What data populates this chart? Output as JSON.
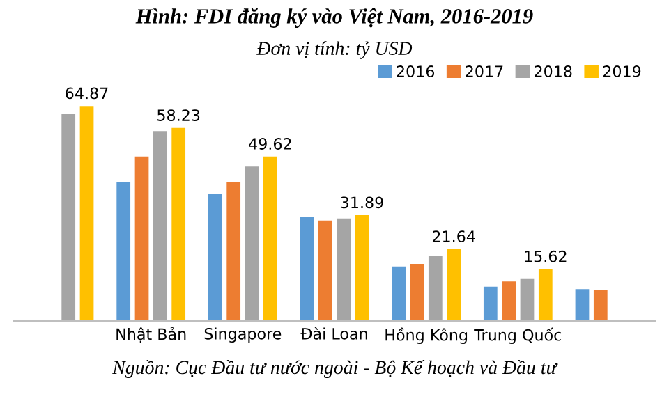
{
  "chart_data": {
    "type": "bar",
    "title": "Hình: FDI đăng ký vào Việt Nam, 2016-2019",
    "subtitle": "Đơn vị tính: tỷ USD",
    "categories": [
      null,
      "Nhật Bản",
      "Singapore",
      "Đài Loan",
      "Hồng Kông",
      "Trung Quốc",
      null
    ],
    "series": [
      {
        "name": "2016",
        "color": "#5b9bd5",
        "values": [
          null,
          42.0,
          38.2,
          31.3,
          16.4,
          10.3,
          9.6
        ]
      },
      {
        "name": "2017",
        "color": "#ed7d31",
        "values": [
          null,
          49.6,
          42.0,
          30.3,
          17.2,
          11.9,
          9.4
        ]
      },
      {
        "name": "2018",
        "color": "#a5a5a5",
        "values": [
          62.4,
          57.3,
          46.6,
          30.9,
          19.5,
          12.6,
          null
        ]
      },
      {
        "name": "2019",
        "color": "#ffc000",
        "values": [
          64.87,
          58.23,
          49.62,
          31.89,
          21.64,
          15.62,
          null
        ],
        "value_labels": [
          "64.87",
          "58.23",
          "49.62",
          "31.89",
          "21.64",
          "15.62",
          null
        ]
      }
    ],
    "annotations": [
      "Nguồn: Cục Đầu tư nước ngoài - Bộ Kế hoạch và Đầu tư"
    ],
    "legend": "top right",
    "tick_labels": "x",
    "grid": false
  }
}
